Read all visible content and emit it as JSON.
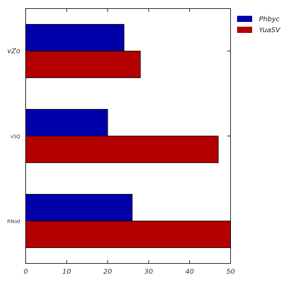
{
  "chart_data": {
    "type": "bar",
    "orientation": "horizontal",
    "categories": [
      "vZo",
      "vSQ",
      "RNod"
    ],
    "series": [
      {
        "name": "Phbyc",
        "color": "#0000aa",
        "values": [
          24,
          20,
          26
        ]
      },
      {
        "name": "YuaSV",
        "color": "#b30000",
        "values": [
          28,
          47,
          50
        ]
      }
    ],
    "xlim": [
      0,
      50
    ],
    "x_ticks": [
      "0",
      "10",
      "20",
      "30",
      "40",
      "50"
    ],
    "grid": false,
    "legend_position": "top-right-outside",
    "title": "",
    "xlabel": "",
    "ylabel": ""
  }
}
